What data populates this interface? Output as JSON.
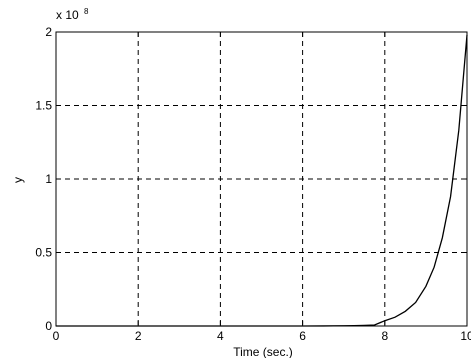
{
  "chart_data": {
    "type": "line",
    "title": "",
    "xlabel": "Time (sec.)",
    "ylabel": "y",
    "xlim": [
      0,
      10
    ],
    "ylim": [
      0,
      2
    ],
    "y_scale_label": {
      "base": "x 10",
      "exponent": "8"
    },
    "x_ticks": [
      0,
      2,
      4,
      6,
      8,
      10
    ],
    "x_tick_labels": [
      "0",
      "2",
      "4",
      "6",
      "8",
      "10"
    ],
    "y_ticks": [
      0,
      0.5,
      1,
      1.5,
      2
    ],
    "y_tick_labels": [
      "0",
      "0.5",
      "1",
      "1.5",
      "2"
    ],
    "grid": true,
    "grid_style": "dashed",
    "line_color": "#000000",
    "series": [
      {
        "x": [
          0,
          1,
          2,
          3,
          4,
          5,
          6,
          6.5,
          7,
          7.25,
          7.5,
          7.75,
          8,
          8.25,
          8.5,
          8.75,
          9,
          9.2,
          9.4,
          9.6,
          9.8,
          10
        ],
        "values": [
          0,
          0,
          0,
          0,
          0,
          0,
          0.0002,
          0.0005,
          0.0015,
          0.0025,
          0.004,
          0.007,
          0.036,
          0.06,
          0.1,
          0.16,
          0.27,
          0.4,
          0.6,
          0.88,
          1.33,
          1.98
        ]
      }
    ]
  }
}
